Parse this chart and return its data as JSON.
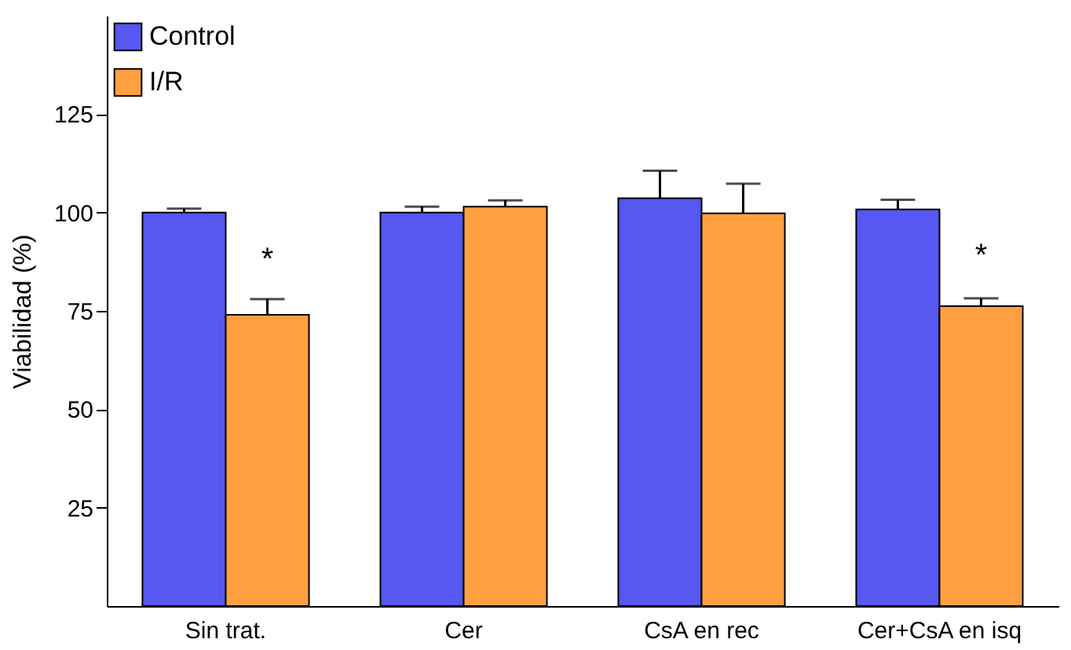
{
  "chart_data": {
    "type": "bar",
    "ylabel": "Viabilidad (%)",
    "categories": [
      "Sin trat.",
      "Cer",
      "CsA en rec",
      "Cer+CsA en isq"
    ],
    "series": [
      {
        "name": "Control",
        "color": "#5757f2",
        "values": [
          100,
          100,
          103.6,
          100.8
        ],
        "errors": [
          1,
          1.5,
          7,
          2.4
        ]
      },
      {
        "name": "I/R",
        "color": "#ffa040",
        "values": [
          74,
          101.5,
          99.8,
          76.2
        ],
        "errors": [
          4,
          1.6,
          7.5,
          2
        ]
      }
    ],
    "ylim": [
      0,
      150
    ],
    "yticks": [
      25,
      50,
      75,
      100,
      125
    ],
    "grid": false,
    "legend": "top left",
    "annotations": [
      {
        "text": "*",
        "x": "Sin trat.",
        "y": 88
      },
      {
        "text": "*",
        "x": "Cer+CsA en isq",
        "y": 89
      }
    ]
  }
}
